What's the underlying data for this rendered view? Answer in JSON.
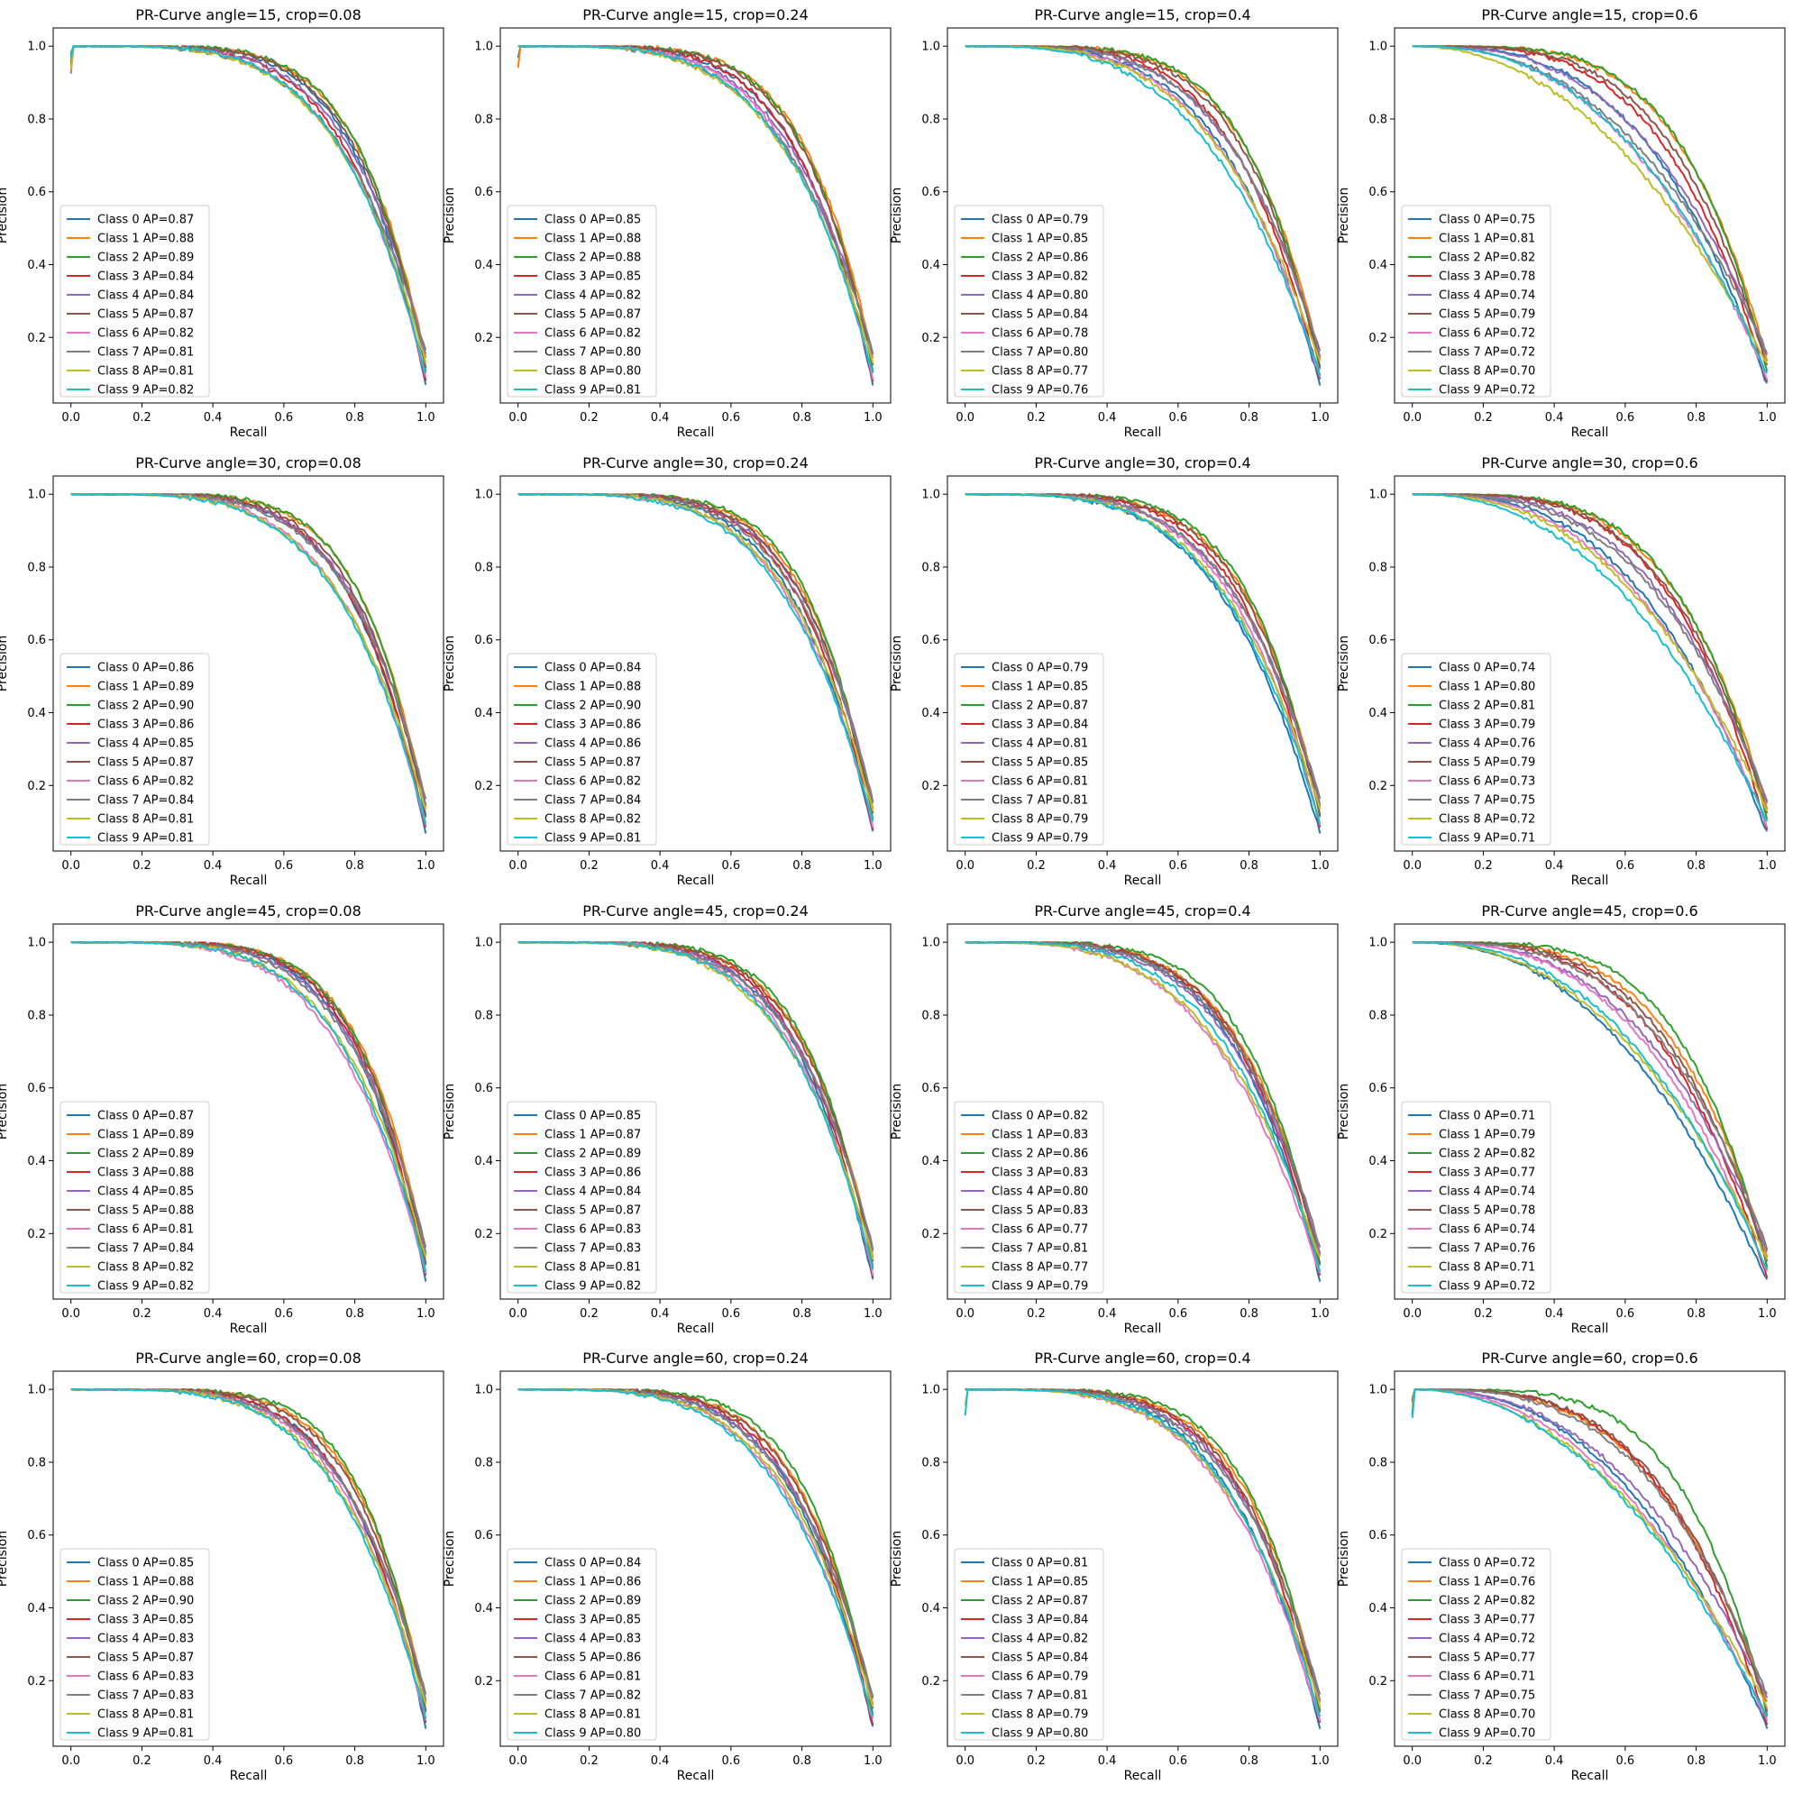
{
  "figure": {
    "rows": 4,
    "cols": 4,
    "class_colors": [
      "#1f77b4",
      "#ff7f0e",
      "#2ca02c",
      "#d62728",
      "#9467bd",
      "#8c564b",
      "#e377c2",
      "#7f7f7f",
      "#bcbd22",
      "#17becf"
    ]
  },
  "chart_data": [
    {
      "type": "line",
      "title": "PR-Curve angle=15, crop=0.08",
      "xlabel": "Recall",
      "ylabel": "Precision",
      "xlim": [
        -0.05,
        1.05
      ],
      "ylim": [
        0.02,
        1.05
      ],
      "xticks": [
        0.0,
        0.2,
        0.4,
        0.6,
        0.8,
        1.0
      ],
      "yticks": [
        0.2,
        0.4,
        0.6,
        0.8,
        1.0
      ],
      "legend_position": "lower-left",
      "legend": [
        "Class 0 AP=0.87",
        "Class 1 AP=0.88",
        "Class 2 AP=0.89",
        "Class 3 AP=0.84",
        "Class 4 AP=0.84",
        "Class 5 AP=0.87",
        "Class 6 AP=0.82",
        "Class 7 AP=0.81",
        "Class 8 AP=0.81",
        "Class 9 AP=0.82"
      ],
      "ap": [
        0.87,
        0.88,
        0.89,
        0.84,
        0.84,
        0.87,
        0.82,
        0.81,
        0.81,
        0.82
      ]
    },
    {
      "type": "line",
      "title": "PR-Curve angle=15, crop=0.24",
      "xlabel": "Recall",
      "ylabel": "Precision",
      "xlim": [
        -0.05,
        1.05
      ],
      "ylim": [
        0.02,
        1.05
      ],
      "xticks": [
        0.0,
        0.2,
        0.4,
        0.6,
        0.8,
        1.0
      ],
      "yticks": [
        0.2,
        0.4,
        0.6,
        0.8,
        1.0
      ],
      "legend_position": "lower-left",
      "legend": [
        "Class 0 AP=0.85",
        "Class 1 AP=0.88",
        "Class 2 AP=0.88",
        "Class 3 AP=0.85",
        "Class 4 AP=0.82",
        "Class 5 AP=0.87",
        "Class 6 AP=0.82",
        "Class 7 AP=0.80",
        "Class 8 AP=0.80",
        "Class 9 AP=0.81"
      ],
      "ap": [
        0.85,
        0.88,
        0.88,
        0.85,
        0.82,
        0.87,
        0.82,
        0.8,
        0.8,
        0.81
      ]
    },
    {
      "type": "line",
      "title": "PR-Curve angle=15, crop=0.4",
      "xlabel": "Recall",
      "ylabel": "Precision",
      "xlim": [
        -0.05,
        1.05
      ],
      "ylim": [
        0.02,
        1.05
      ],
      "xticks": [
        0.0,
        0.2,
        0.4,
        0.6,
        0.8,
        1.0
      ],
      "yticks": [
        0.2,
        0.4,
        0.6,
        0.8,
        1.0
      ],
      "legend_position": "lower-left",
      "legend": [
        "Class 0 AP=0.79",
        "Class 1 AP=0.85",
        "Class 2 AP=0.86",
        "Class 3 AP=0.82",
        "Class 4 AP=0.80",
        "Class 5 AP=0.84",
        "Class 6 AP=0.78",
        "Class 7 AP=0.80",
        "Class 8 AP=0.77",
        "Class 9 AP=0.76"
      ],
      "ap": [
        0.79,
        0.85,
        0.86,
        0.82,
        0.8,
        0.84,
        0.78,
        0.8,
        0.77,
        0.76
      ]
    },
    {
      "type": "line",
      "title": "PR-Curve angle=15, crop=0.6",
      "xlabel": "Recall",
      "ylabel": "Precision",
      "xlim": [
        -0.05,
        1.05
      ],
      "ylim": [
        0.02,
        1.05
      ],
      "xticks": [
        0.0,
        0.2,
        0.4,
        0.6,
        0.8,
        1.0
      ],
      "yticks": [
        0.2,
        0.4,
        0.6,
        0.8,
        1.0
      ],
      "legend_position": "lower-left",
      "legend": [
        "Class 0 AP=0.75",
        "Class 1 AP=0.81",
        "Class 2 AP=0.82",
        "Class 3 AP=0.78",
        "Class 4 AP=0.74",
        "Class 5 AP=0.79",
        "Class 6 AP=0.72",
        "Class 7 AP=0.72",
        "Class 8 AP=0.70",
        "Class 9 AP=0.72"
      ],
      "ap": [
        0.75,
        0.81,
        0.82,
        0.78,
        0.74,
        0.79,
        0.72,
        0.72,
        0.7,
        0.72
      ]
    },
    {
      "type": "line",
      "title": "PR-Curve angle=30, crop=0.08",
      "xlabel": "Recall",
      "ylabel": "Precision",
      "xlim": [
        -0.05,
        1.05
      ],
      "ylim": [
        0.02,
        1.05
      ],
      "xticks": [
        0.0,
        0.2,
        0.4,
        0.6,
        0.8,
        1.0
      ],
      "yticks": [
        0.2,
        0.4,
        0.6,
        0.8,
        1.0
      ],
      "legend_position": "lower-left",
      "legend": [
        "Class 0 AP=0.86",
        "Class 1 AP=0.89",
        "Class 2 AP=0.90",
        "Class 3 AP=0.86",
        "Class 4 AP=0.85",
        "Class 5 AP=0.87",
        "Class 6 AP=0.82",
        "Class 7 AP=0.84",
        "Class 8 AP=0.81",
        "Class 9 AP=0.81"
      ],
      "ap": [
        0.86,
        0.89,
        0.9,
        0.86,
        0.85,
        0.87,
        0.82,
        0.84,
        0.81,
        0.81
      ]
    },
    {
      "type": "line",
      "title": "PR-Curve angle=30, crop=0.24",
      "xlabel": "Recall",
      "ylabel": "Precision",
      "xlim": [
        -0.05,
        1.05
      ],
      "ylim": [
        0.02,
        1.05
      ],
      "xticks": [
        0.0,
        0.2,
        0.4,
        0.6,
        0.8,
        1.0
      ],
      "yticks": [
        0.2,
        0.4,
        0.6,
        0.8,
        1.0
      ],
      "legend_position": "lower-left",
      "legend": [
        "Class 0 AP=0.84",
        "Class 1 AP=0.88",
        "Class 2 AP=0.90",
        "Class 3 AP=0.86",
        "Class 4 AP=0.86",
        "Class 5 AP=0.87",
        "Class 6 AP=0.82",
        "Class 7 AP=0.84",
        "Class 8 AP=0.82",
        "Class 9 AP=0.81"
      ],
      "ap": [
        0.84,
        0.88,
        0.9,
        0.86,
        0.86,
        0.87,
        0.82,
        0.84,
        0.82,
        0.81
      ]
    },
    {
      "type": "line",
      "title": "PR-Curve angle=30, crop=0.4",
      "xlabel": "Recall",
      "ylabel": "Precision",
      "xlim": [
        -0.05,
        1.05
      ],
      "ylim": [
        0.02,
        1.05
      ],
      "xticks": [
        0.0,
        0.2,
        0.4,
        0.6,
        0.8,
        1.0
      ],
      "yticks": [
        0.2,
        0.4,
        0.6,
        0.8,
        1.0
      ],
      "legend_position": "lower-left",
      "legend": [
        "Class 0 AP=0.79",
        "Class 1 AP=0.85",
        "Class 2 AP=0.87",
        "Class 3 AP=0.84",
        "Class 4 AP=0.81",
        "Class 5 AP=0.85",
        "Class 6 AP=0.81",
        "Class 7 AP=0.81",
        "Class 8 AP=0.79",
        "Class 9 AP=0.79"
      ],
      "ap": [
        0.79,
        0.85,
        0.87,
        0.84,
        0.81,
        0.85,
        0.81,
        0.81,
        0.79,
        0.79
      ]
    },
    {
      "type": "line",
      "title": "PR-Curve angle=30, crop=0.6",
      "xlabel": "Recall",
      "ylabel": "Precision",
      "xlim": [
        -0.05,
        1.05
      ],
      "ylim": [
        0.02,
        1.05
      ],
      "xticks": [
        0.0,
        0.2,
        0.4,
        0.6,
        0.8,
        1.0
      ],
      "yticks": [
        0.2,
        0.4,
        0.6,
        0.8,
        1.0
      ],
      "legend_position": "lower-left",
      "legend": [
        "Class 0 AP=0.74",
        "Class 1 AP=0.80",
        "Class 2 AP=0.81",
        "Class 3 AP=0.79",
        "Class 4 AP=0.76",
        "Class 5 AP=0.79",
        "Class 6 AP=0.73",
        "Class 7 AP=0.75",
        "Class 8 AP=0.72",
        "Class 9 AP=0.71"
      ],
      "ap": [
        0.74,
        0.8,
        0.81,
        0.79,
        0.76,
        0.79,
        0.73,
        0.75,
        0.72,
        0.71
      ]
    },
    {
      "type": "line",
      "title": "PR-Curve angle=45, crop=0.08",
      "xlabel": "Recall",
      "ylabel": "Precision",
      "xlim": [
        -0.05,
        1.05
      ],
      "ylim": [
        0.02,
        1.05
      ],
      "xticks": [
        0.0,
        0.2,
        0.4,
        0.6,
        0.8,
        1.0
      ],
      "yticks": [
        0.2,
        0.4,
        0.6,
        0.8,
        1.0
      ],
      "legend_position": "lower-left",
      "legend": [
        "Class 0 AP=0.87",
        "Class 1 AP=0.89",
        "Class 2 AP=0.89",
        "Class 3 AP=0.88",
        "Class 4 AP=0.85",
        "Class 5 AP=0.88",
        "Class 6 AP=0.81",
        "Class 7 AP=0.84",
        "Class 8 AP=0.82",
        "Class 9 AP=0.82"
      ],
      "ap": [
        0.87,
        0.89,
        0.89,
        0.88,
        0.85,
        0.88,
        0.81,
        0.84,
        0.82,
        0.82
      ]
    },
    {
      "type": "line",
      "title": "PR-Curve angle=45, crop=0.24",
      "xlabel": "Recall",
      "ylabel": "Precision",
      "xlim": [
        -0.05,
        1.05
      ],
      "ylim": [
        0.02,
        1.05
      ],
      "xticks": [
        0.0,
        0.2,
        0.4,
        0.6,
        0.8,
        1.0
      ],
      "yticks": [
        0.2,
        0.4,
        0.6,
        0.8,
        1.0
      ],
      "legend_position": "lower-left",
      "legend": [
        "Class 0 AP=0.85",
        "Class 1 AP=0.87",
        "Class 2 AP=0.89",
        "Class 3 AP=0.86",
        "Class 4 AP=0.84",
        "Class 5 AP=0.87",
        "Class 6 AP=0.83",
        "Class 7 AP=0.83",
        "Class 8 AP=0.81",
        "Class 9 AP=0.82"
      ],
      "ap": [
        0.85,
        0.87,
        0.89,
        0.86,
        0.84,
        0.87,
        0.83,
        0.83,
        0.81,
        0.82
      ]
    },
    {
      "type": "line",
      "title": "PR-Curve angle=45, crop=0.4",
      "xlabel": "Recall",
      "ylabel": "Precision",
      "xlim": [
        -0.05,
        1.05
      ],
      "ylim": [
        0.02,
        1.05
      ],
      "xticks": [
        0.0,
        0.2,
        0.4,
        0.6,
        0.8,
        1.0
      ],
      "yticks": [
        0.2,
        0.4,
        0.6,
        0.8,
        1.0
      ],
      "legend_position": "lower-left",
      "legend": [
        "Class 0 AP=0.82",
        "Class 1 AP=0.83",
        "Class 2 AP=0.86",
        "Class 3 AP=0.83",
        "Class 4 AP=0.80",
        "Class 5 AP=0.83",
        "Class 6 AP=0.77",
        "Class 7 AP=0.81",
        "Class 8 AP=0.77",
        "Class 9 AP=0.79"
      ],
      "ap": [
        0.82,
        0.83,
        0.86,
        0.83,
        0.8,
        0.83,
        0.77,
        0.81,
        0.77,
        0.79
      ]
    },
    {
      "type": "line",
      "title": "PR-Curve angle=45, crop=0.6",
      "xlabel": "Recall",
      "ylabel": "Precision",
      "xlim": [
        -0.05,
        1.05
      ],
      "ylim": [
        0.02,
        1.05
      ],
      "xticks": [
        0.0,
        0.2,
        0.4,
        0.6,
        0.8,
        1.0
      ],
      "yticks": [
        0.2,
        0.4,
        0.6,
        0.8,
        1.0
      ],
      "legend_position": "lower-left",
      "legend": [
        "Class 0 AP=0.71",
        "Class 1 AP=0.79",
        "Class 2 AP=0.82",
        "Class 3 AP=0.77",
        "Class 4 AP=0.74",
        "Class 5 AP=0.78",
        "Class 6 AP=0.74",
        "Class 7 AP=0.76",
        "Class 8 AP=0.71",
        "Class 9 AP=0.72"
      ],
      "ap": [
        0.71,
        0.79,
        0.82,
        0.77,
        0.74,
        0.78,
        0.74,
        0.76,
        0.71,
        0.72
      ]
    },
    {
      "type": "line",
      "title": "PR-Curve angle=60, crop=0.08",
      "xlabel": "Recall",
      "ylabel": "Precision",
      "xlim": [
        -0.05,
        1.05
      ],
      "ylim": [
        0.02,
        1.05
      ],
      "xticks": [
        0.0,
        0.2,
        0.4,
        0.6,
        0.8,
        1.0
      ],
      "yticks": [
        0.2,
        0.4,
        0.6,
        0.8,
        1.0
      ],
      "legend_position": "lower-left",
      "legend": [
        "Class 0 AP=0.85",
        "Class 1 AP=0.88",
        "Class 2 AP=0.90",
        "Class 3 AP=0.85",
        "Class 4 AP=0.83",
        "Class 5 AP=0.87",
        "Class 6 AP=0.83",
        "Class 7 AP=0.83",
        "Class 8 AP=0.81",
        "Class 9 AP=0.81"
      ],
      "ap": [
        0.85,
        0.88,
        0.9,
        0.85,
        0.83,
        0.87,
        0.83,
        0.83,
        0.81,
        0.81
      ]
    },
    {
      "type": "line",
      "title": "PR-Curve angle=60, crop=0.24",
      "xlabel": "Recall",
      "ylabel": "Precision",
      "xlim": [
        -0.05,
        1.05
      ],
      "ylim": [
        0.02,
        1.05
      ],
      "xticks": [
        0.0,
        0.2,
        0.4,
        0.6,
        0.8,
        1.0
      ],
      "yticks": [
        0.2,
        0.4,
        0.6,
        0.8,
        1.0
      ],
      "legend_position": "lower-left",
      "legend": [
        "Class 0 AP=0.84",
        "Class 1 AP=0.86",
        "Class 2 AP=0.89",
        "Class 3 AP=0.85",
        "Class 4 AP=0.83",
        "Class 5 AP=0.86",
        "Class 6 AP=0.81",
        "Class 7 AP=0.82",
        "Class 8 AP=0.81",
        "Class 9 AP=0.80"
      ],
      "ap": [
        0.84,
        0.86,
        0.89,
        0.85,
        0.83,
        0.86,
        0.81,
        0.82,
        0.81,
        0.8
      ]
    },
    {
      "type": "line",
      "title": "PR-Curve angle=60, crop=0.4",
      "xlabel": "Recall",
      "ylabel": "Precision",
      "xlim": [
        -0.05,
        1.05
      ],
      "ylim": [
        0.02,
        1.05
      ],
      "xticks": [
        0.0,
        0.2,
        0.4,
        0.6,
        0.8,
        1.0
      ],
      "yticks": [
        0.2,
        0.4,
        0.6,
        0.8,
        1.0
      ],
      "legend_position": "lower-left",
      "legend": [
        "Class 0 AP=0.81",
        "Class 1 AP=0.85",
        "Class 2 AP=0.87",
        "Class 3 AP=0.84",
        "Class 4 AP=0.82",
        "Class 5 AP=0.84",
        "Class 6 AP=0.79",
        "Class 7 AP=0.81",
        "Class 8 AP=0.79",
        "Class 9 AP=0.80"
      ],
      "ap": [
        0.81,
        0.85,
        0.87,
        0.84,
        0.82,
        0.84,
        0.79,
        0.81,
        0.79,
        0.8
      ]
    },
    {
      "type": "line",
      "title": "PR-Curve angle=60, crop=0.6",
      "xlabel": "Recall",
      "ylabel": "Precision",
      "xlim": [
        -0.05,
        1.05
      ],
      "ylim": [
        0.02,
        1.05
      ],
      "xticks": [
        0.0,
        0.2,
        0.4,
        0.6,
        0.8,
        1.0
      ],
      "yticks": [
        0.2,
        0.4,
        0.6,
        0.8,
        1.0
      ],
      "legend_position": "lower-left",
      "legend": [
        "Class 0 AP=0.72",
        "Class 1 AP=0.76",
        "Class 2 AP=0.82",
        "Class 3 AP=0.77",
        "Class 4 AP=0.72",
        "Class 5 AP=0.77",
        "Class 6 AP=0.71",
        "Class 7 AP=0.75",
        "Class 8 AP=0.70",
        "Class 9 AP=0.70"
      ],
      "ap": [
        0.72,
        0.76,
        0.82,
        0.77,
        0.72,
        0.77,
        0.71,
        0.75,
        0.7,
        0.7
      ]
    }
  ]
}
